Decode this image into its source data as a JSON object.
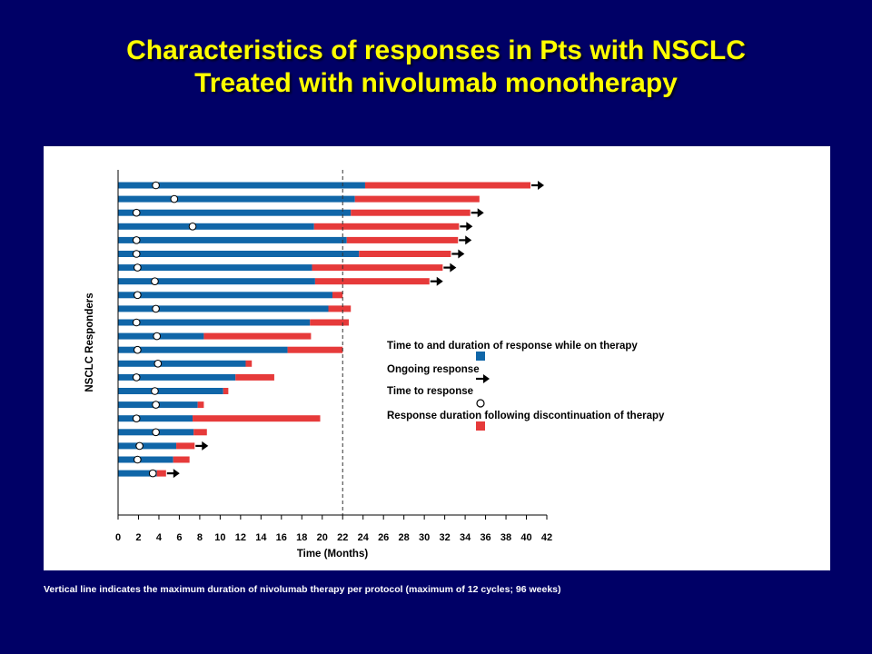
{
  "slide": {
    "title_line1": "Characteristics of responses  in Pts with NSCLC",
    "title_line2": "Treated with nivolumab monotherapy",
    "footnote": "Vertical line indicates the maximum duration of nivolumab therapy per protocol (maximum of 12 cycles; 96 weeks)"
  },
  "colors": {
    "background": "#000066",
    "title": "#ffff00",
    "on_therapy": "#1066a8",
    "after_discontinuation": "#e63a3a"
  },
  "chart_data": {
    "type": "bar",
    "subtype": "swimmer",
    "xlabel": "Time (Months)",
    "ylabel": "NSCLC Responders",
    "xlim": [
      0,
      42
    ],
    "xticks": [
      0,
      2,
      4,
      6,
      8,
      10,
      12,
      14,
      16,
      18,
      20,
      22,
      24,
      26,
      28,
      30,
      32,
      34,
      36,
      38,
      40,
      42
    ],
    "reference_line": {
      "x": 22,
      "style": "dashed"
    },
    "legend": {
      "placement": "right",
      "entries": [
        "Time to and duration of response while on therapy",
        "Ongoing response",
        "Time to response",
        "Response duration following discontinuation of therapy"
      ]
    },
    "patients": [
      {
        "on_therapy_end": 24.2,
        "end": 40.4,
        "time_to_response": 3.7,
        "ongoing": true
      },
      {
        "on_therapy_end": 23.2,
        "end": 35.4,
        "time_to_response": 5.5,
        "ongoing": false
      },
      {
        "on_therapy_end": 22.8,
        "end": 34.5,
        "time_to_response": 1.8,
        "ongoing": true
      },
      {
        "on_therapy_end": 19.2,
        "end": 33.4,
        "time_to_response": 7.3,
        "ongoing": true
      },
      {
        "on_therapy_end": 22.4,
        "end": 33.3,
        "time_to_response": 1.8,
        "ongoing": true
      },
      {
        "on_therapy_end": 23.6,
        "end": 32.6,
        "time_to_response": 1.8,
        "ongoing": true
      },
      {
        "on_therapy_end": 19.0,
        "end": 31.8,
        "time_to_response": 1.9,
        "ongoing": true
      },
      {
        "on_therapy_end": 19.3,
        "end": 30.5,
        "time_to_response": 3.6,
        "ongoing": true
      },
      {
        "on_therapy_end": 21.0,
        "end": 22.0,
        "time_to_response": 1.9,
        "ongoing": false
      },
      {
        "on_therapy_end": 20.6,
        "end": 22.8,
        "time_to_response": 3.7,
        "ongoing": false
      },
      {
        "on_therapy_end": 18.8,
        "end": 22.6,
        "time_to_response": 1.8,
        "ongoing": false
      },
      {
        "on_therapy_end": 8.4,
        "end": 18.9,
        "time_to_response": 3.8,
        "ongoing": false
      },
      {
        "on_therapy_end": 16.6,
        "end": 22.0,
        "time_to_response": 1.9,
        "ongoing": false
      },
      {
        "on_therapy_end": 12.5,
        "end": 13.1,
        "time_to_response": 3.9,
        "ongoing": false
      },
      {
        "on_therapy_end": 11.5,
        "end": 15.3,
        "time_to_response": 1.8,
        "ongoing": false
      },
      {
        "on_therapy_end": 10.3,
        "end": 10.8,
        "time_to_response": 3.6,
        "ongoing": false
      },
      {
        "on_therapy_end": 7.8,
        "end": 8.4,
        "time_to_response": 3.7,
        "ongoing": false
      },
      {
        "on_therapy_end": 7.3,
        "end": 19.8,
        "time_to_response": 1.8,
        "ongoing": false
      },
      {
        "on_therapy_end": 7.4,
        "end": 8.7,
        "time_to_response": 3.7,
        "ongoing": false
      },
      {
        "on_therapy_end": 5.7,
        "end": 7.5,
        "time_to_response": 2.1,
        "ongoing": true
      },
      {
        "on_therapy_end": 5.4,
        "end": 7.0,
        "time_to_response": 1.9,
        "ongoing": false
      },
      {
        "on_therapy_end": 3.8,
        "end": 4.7,
        "time_to_response": 3.4,
        "ongoing": true
      }
    ]
  }
}
